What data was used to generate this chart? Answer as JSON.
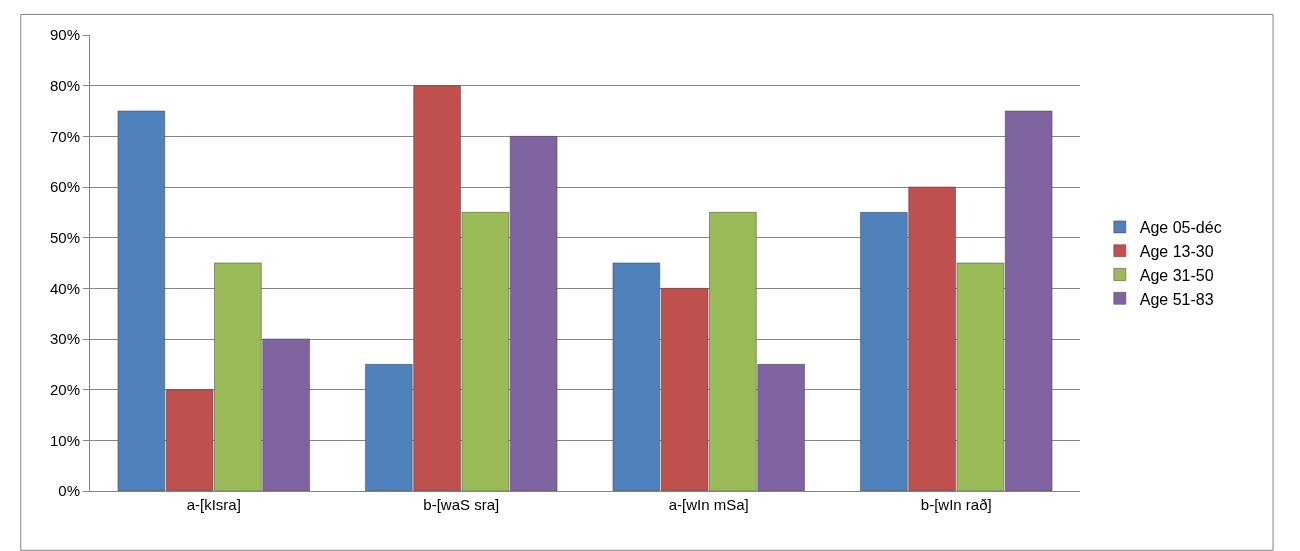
{
  "chart_data": {
    "type": "bar",
    "categories": [
      "a-[kIsra]",
      "b-[waS sra]",
      "a-[wIn mSa]",
      "b-[wIn rað]"
    ],
    "series": [
      {
        "name": "Age 05-déc",
        "color": "#4f81bd",
        "values": [
          75,
          25,
          45,
          55
        ]
      },
      {
        "name": "Age 13-30",
        "color": "#c0504d",
        "values": [
          20,
          80,
          40,
          60
        ]
      },
      {
        "name": "Age 31-50",
        "color": "#9bbb59",
        "values": [
          45,
          55,
          55,
          45
        ]
      },
      {
        "name": "Age 51-83",
        "color": "#8064a2",
        "values": [
          30,
          70,
          25,
          75
        ]
      }
    ],
    "ylim": [
      0,
      90
    ],
    "yticks": [
      {
        "value": 0,
        "label": "0%"
      },
      {
        "value": 10,
        "label": "10%"
      },
      {
        "value": 20,
        "label": "20%"
      },
      {
        "value": 30,
        "label": "30%"
      },
      {
        "value": 40,
        "label": "40%"
      },
      {
        "value": 50,
        "label": "50%"
      },
      {
        "value": 60,
        "label": "60%"
      },
      {
        "value": 70,
        "label": "70%"
      },
      {
        "value": 80,
        "label": "80%"
      },
      {
        "value": 90,
        "label": "90%"
      }
    ],
    "grid": "y",
    "legend": "right"
  }
}
